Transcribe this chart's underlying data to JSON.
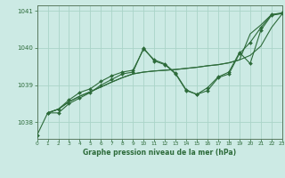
{
  "title": "Graphe pression niveau de la mer (hPa)",
  "bg_color": "#cceae4",
  "grid_color": "#aad4c8",
  "line_color": "#2d6b3a",
  "spine_color": "#5a7a60",
  "xlim": [
    0,
    23
  ],
  "ylim": [
    1037.55,
    1041.15
  ],
  "yticks": [
    1038,
    1039,
    1040,
    1041
  ],
  "xticks": [
    0,
    1,
    2,
    3,
    4,
    5,
    6,
    7,
    8,
    9,
    10,
    11,
    12,
    13,
    14,
    15,
    16,
    17,
    18,
    19,
    20,
    21,
    22,
    23
  ],
  "s1_x": [
    0,
    1,
    2,
    3,
    4,
    5,
    6,
    7,
    8,
    9,
    10,
    11,
    12,
    13,
    14,
    15,
    16,
    17,
    18,
    19,
    20,
    21,
    22,
    23
  ],
  "s1_y": [
    1037.65,
    1038.25,
    1038.25,
    1038.5,
    1038.65,
    1038.8,
    1039.0,
    1039.15,
    1039.3,
    1039.35,
    1040.0,
    1039.65,
    1039.55,
    1039.3,
    1038.85,
    1038.75,
    1038.85,
    1039.2,
    1039.3,
    1039.85,
    1040.15,
    1040.55,
    1040.9,
    1040.95
  ],
  "s2_x": [
    1,
    2,
    3,
    4,
    5,
    6,
    7,
    8,
    9,
    10,
    11,
    12,
    13,
    14,
    15,
    16,
    17,
    18,
    19,
    20,
    21,
    22,
    23
  ],
  "s2_y": [
    1038.25,
    1038.35,
    1038.55,
    1038.7,
    1038.82,
    1038.95,
    1039.08,
    1039.2,
    1039.3,
    1039.35,
    1039.38,
    1039.4,
    1039.42,
    1039.45,
    1039.48,
    1039.52,
    1039.55,
    1039.6,
    1039.68,
    1039.8,
    1040.05,
    1040.55,
    1040.92
  ],
  "s3_x": [
    1,
    2,
    3,
    4,
    5,
    6,
    7,
    8,
    9,
    10,
    11,
    12,
    13,
    14,
    15,
    16,
    17,
    18,
    19,
    20,
    21,
    22,
    23
  ],
  "s3_y": [
    1038.25,
    1038.35,
    1038.55,
    1038.7,
    1038.82,
    1038.95,
    1039.08,
    1039.2,
    1039.3,
    1039.35,
    1039.38,
    1039.4,
    1039.42,
    1039.45,
    1039.48,
    1039.52,
    1039.55,
    1039.6,
    1039.68,
    1040.38,
    1040.62,
    1040.9,
    1040.93
  ],
  "s4_x": [
    1,
    2,
    3,
    4,
    5,
    6,
    7,
    8,
    9,
    10,
    11,
    12,
    13,
    14,
    15,
    16,
    17,
    18,
    19,
    20,
    21,
    22,
    23
  ],
  "s4_y": [
    1038.25,
    1038.35,
    1038.6,
    1038.8,
    1038.9,
    1039.1,
    1039.25,
    1039.35,
    1039.4,
    1039.97,
    1039.68,
    1039.57,
    1039.32,
    1038.87,
    1038.75,
    1038.93,
    1039.22,
    1039.35,
    1039.88,
    1039.58,
    1040.48,
    1040.88,
    1040.93
  ]
}
